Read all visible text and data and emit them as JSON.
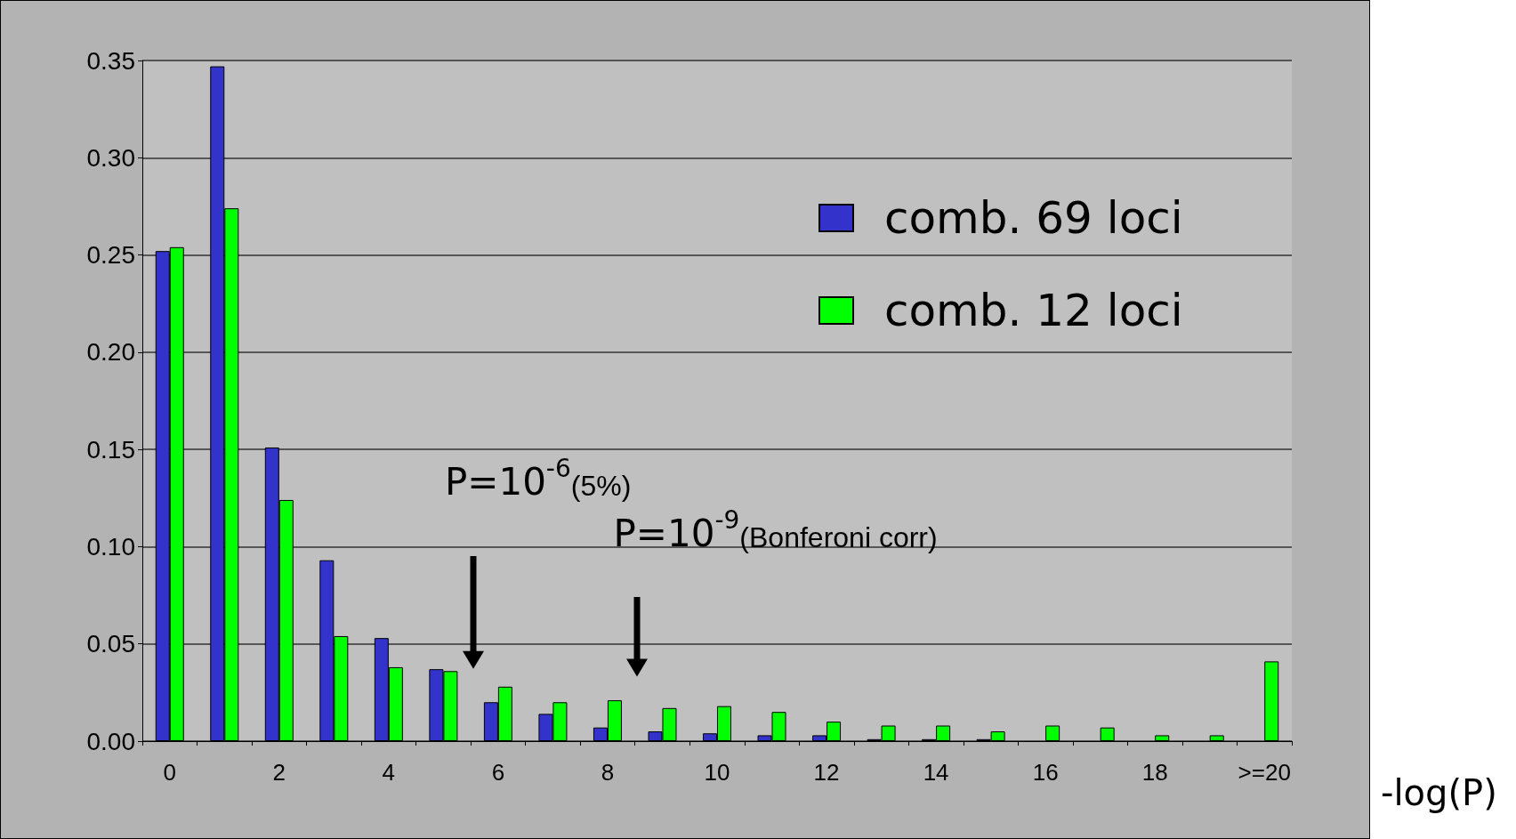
{
  "chart_data": {
    "type": "bar",
    "xlabel": "-log(P)",
    "categories": [
      "0",
      null,
      "2",
      null,
      "4",
      null,
      "6",
      null,
      "8",
      null,
      "10",
      null,
      "12",
      null,
      "14",
      null,
      "16",
      null,
      "18",
      null,
      ">=20"
    ],
    "series": [
      {
        "name": "comb. 69 loci",
        "color": "#3333cc",
        "values": [
          0.252,
          0.347,
          0.151,
          0.093,
          0.053,
          0.037,
          0.02,
          0.014,
          0.007,
          0.005,
          0.004,
          0.003,
          0.003,
          0.001,
          0.001,
          0.001,
          0,
          0,
          0,
          0,
          0
        ]
      },
      {
        "name": "comb. 12 loci",
        "color": "#00ff00",
        "values": [
          0.254,
          0.274,
          0.124,
          0.054,
          0.038,
          0.036,
          0.028,
          0.02,
          0.021,
          0.017,
          0.018,
          0.015,
          0.01,
          0.008,
          0.008,
          0.005,
          0.008,
          0.007,
          0.003,
          0.003,
          0.041
        ]
      }
    ],
    "ylim": [
      0,
      0.35
    ],
    "yticks": [
      {
        "value": 0,
        "label": "0.00"
      },
      {
        "value": 0.05,
        "label": "0.05"
      },
      {
        "value": 0.1,
        "label": "0.10"
      },
      {
        "value": 0.15,
        "label": "0.15"
      },
      {
        "value": 0.2,
        "label": "0.20"
      },
      {
        "value": 0.25,
        "label": "0.25"
      },
      {
        "value": 0.3,
        "label": "0.30"
      },
      {
        "value": 0.35,
        "label": "0.35"
      }
    ],
    "annotations": [
      "P=10$^{-6}$(5%)",
      "P=10$^{-9}$(Bonferoni corr)"
    ],
    "grid": "y",
    "legend": "top right"
  }
}
